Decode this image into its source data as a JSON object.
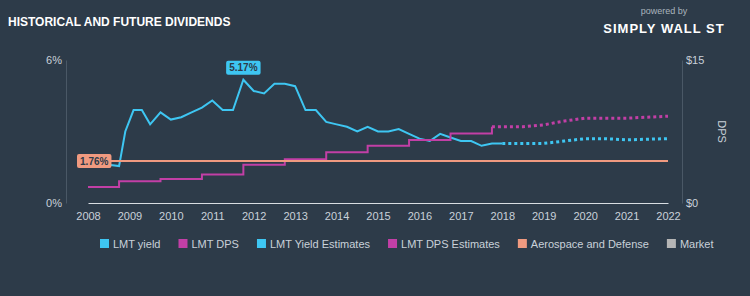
{
  "chart_data": {
    "type": "line",
    "title": "HISTORICAL AND FUTURE DIVIDENDS",
    "credit": [
      "powered by",
      "SIMPLY WALL ST"
    ],
    "xlim": [
      2008,
      2022
    ],
    "xticks": [
      2008,
      2009,
      2010,
      2011,
      2012,
      2013,
      2014,
      2015,
      2016,
      2017,
      2018,
      2019,
      2020,
      2021,
      2022
    ],
    "ylim": [
      0,
      6
    ],
    "yticks": [
      {
        "value": 0,
        "label": "0%"
      },
      {
        "value": 6,
        "label": "6%"
      }
    ],
    "y2lim": [
      0,
      15
    ],
    "y2ticks": [
      {
        "value": 0,
        "label": "$0"
      },
      {
        "value": 15,
        "label": "$15"
      }
    ],
    "y2label": "DPS",
    "grid": false,
    "legend": "bottom",
    "series": [
      {
        "name": "LMT yield",
        "color": "#3ec6f2",
        "type": "line",
        "line_style": "solid",
        "x": [
          2008,
          2008.5,
          2008.75,
          2008.9,
          2009.1,
          2009.3,
          2009.5,
          2009.75,
          2010,
          2010.25,
          2010.5,
          2010.75,
          2011,
          2011.25,
          2011.5,
          2011.75,
          2012,
          2012.25,
          2012.5,
          2012.75,
          2013,
          2013.25,
          2013.5,
          2013.75,
          2014,
          2014.25,
          2014.5,
          2014.75,
          2015,
          2015.25,
          2015.5,
          2015.75,
          2016,
          2016.25,
          2016.5,
          2016.75,
          2017,
          2017.25,
          2017.5,
          2017.75,
          2018
        ],
        "values": [
          1.7,
          1.6,
          1.55,
          3.0,
          3.9,
          3.9,
          3.3,
          3.8,
          3.5,
          3.6,
          3.8,
          4.0,
          4.3,
          3.9,
          3.9,
          5.17,
          4.7,
          4.6,
          5.0,
          5.0,
          4.9,
          3.9,
          3.9,
          3.4,
          3.3,
          3.2,
          3.0,
          3.2,
          3.0,
          3.0,
          3.1,
          2.9,
          2.7,
          2.6,
          2.9,
          2.75,
          2.6,
          2.6,
          2.4,
          2.5,
          2.5
        ]
      },
      {
        "name": "LMT DPS",
        "color": "#c23fa6",
        "type": "step",
        "line_style": "solid",
        "axis": "y2",
        "x": [
          2008,
          2008.75,
          2009.75,
          2010.75,
          2011.75,
          2012.75,
          2013.75,
          2014.75,
          2015.75,
          2016.75,
          2017.75
        ],
        "values": [
          1.68,
          2.28,
          2.52,
          3.0,
          4.0,
          4.6,
          5.32,
          6.0,
          6.6,
          7.28,
          8.0
        ]
      },
      {
        "name": "LMT Yield Estimates",
        "color": "#3ec6f2",
        "type": "line",
        "line_style": "dotted",
        "x": [
          2018,
          2019,
          2019.5,
          2020,
          2020.5,
          2021,
          2022
        ],
        "values": [
          2.5,
          2.5,
          2.6,
          2.7,
          2.7,
          2.65,
          2.7
        ]
      },
      {
        "name": "LMT DPS Estimates",
        "color": "#c23fa6",
        "type": "line",
        "line_style": "dotted",
        "axis": "y2",
        "x": [
          2017.75,
          2018.5,
          2019,
          2019.5,
          2020,
          2021,
          2022
        ],
        "values": [
          8.0,
          8.0,
          8.2,
          8.6,
          8.9,
          8.9,
          9.1
        ]
      },
      {
        "name": "Aerospace and Defense",
        "color": "#f09a80",
        "type": "line",
        "line_style": "solid",
        "x": [
          2008,
          2022
        ],
        "values": [
          1.76,
          1.76
        ]
      },
      {
        "name": "Market",
        "color": "#b5b5b5",
        "type": "line",
        "line_style": "solid",
        "x": [],
        "values": []
      }
    ],
    "annotations": [
      {
        "x": 2011.75,
        "y": 5.17,
        "label": "5.17%",
        "color": "#3ec6f2"
      },
      {
        "x": 2008,
        "y": 1.76,
        "label": "1.76%",
        "color": "#f09a80"
      }
    ]
  }
}
